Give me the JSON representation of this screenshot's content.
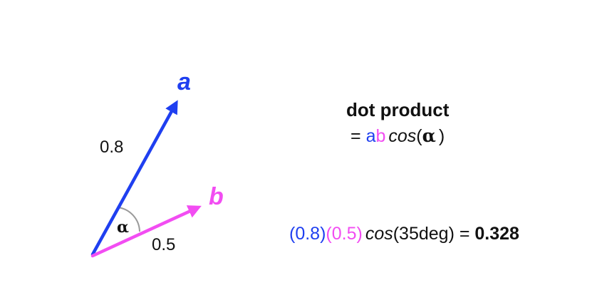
{
  "colors": {
    "vector_a": "#1f3ff0",
    "vector_b": "#f24df2",
    "angle_arc": "#9a9a9a",
    "text": "#111111"
  },
  "diagram": {
    "vector_a": {
      "name": "a",
      "magnitude": "0.8"
    },
    "vector_b": {
      "name": "b",
      "magnitude": "0.5"
    },
    "angle": {
      "symbol": "α"
    }
  },
  "formula": {
    "title": "dot product",
    "equals": "=",
    "a": "a",
    "b": "b",
    "cos": "cos",
    "open_paren": "(",
    "alpha": "α",
    "close_paren": ")"
  },
  "calculation": {
    "a_value": "(0.8)",
    "b_value": "(0.5)",
    "cos": "cos",
    "argument": "(35deg)",
    "equals": " = ",
    "result": "0.328"
  }
}
